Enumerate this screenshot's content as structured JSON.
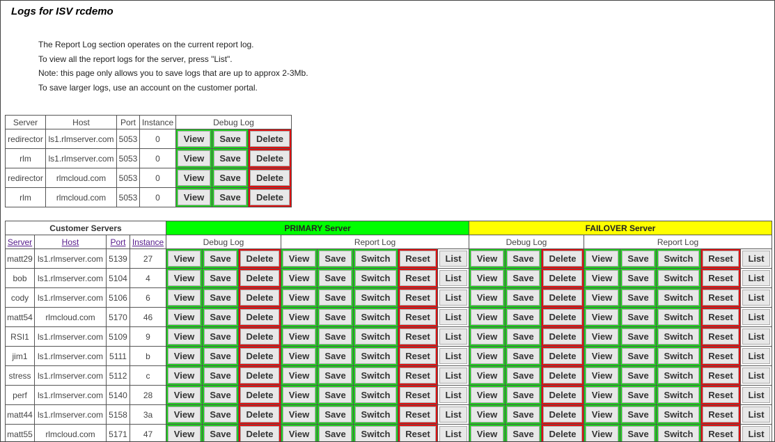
{
  "title": "Logs for ISV rcdemo",
  "notes": [
    "The Report Log section operates on the current report log.",
    "To view all the report logs for the server, press \"List\".",
    "Note: this page only allows you to save logs that are up to approx 2-3Mb.",
    "To save larger logs, use an account on the customer portal."
  ],
  "isv_table": {
    "headers": [
      "Server",
      "Host",
      "Port",
      "Instance",
      "Debug Log"
    ],
    "rows": [
      [
        "redirector",
        "ls1.rlmserver.com",
        "5053",
        "0"
      ],
      [
        "rlm",
        "ls1.rlmserver.com",
        "5053",
        "0"
      ],
      [
        "redirector",
        "rlmcloud.com",
        "5053",
        "0"
      ],
      [
        "rlm",
        "rlmcloud.com",
        "5053",
        "0"
      ]
    ]
  },
  "buttons": {
    "view": "View",
    "save": "Save",
    "delete": "Delete",
    "switch": "Switch",
    "reset": "Reset",
    "list": "List"
  },
  "customer_table": {
    "title": "Customer Servers",
    "primary": "PRIMARY Server",
    "failover": "FAILOVER Server",
    "debug_log": "Debug Log",
    "report_log": "Report Log",
    "headers": [
      "Server",
      "Host",
      "Port",
      "Instance"
    ],
    "rows": [
      [
        "matt29",
        "ls1.rlmserver.com",
        "5139",
        "27"
      ],
      [
        "bob",
        "ls1.rlmserver.com",
        "5104",
        "4"
      ],
      [
        "cody",
        "ls1.rlmserver.com",
        "5106",
        "6"
      ],
      [
        "matt54",
        "rlmcloud.com",
        "5170",
        "46"
      ],
      [
        "RSI1",
        "ls1.rlmserver.com",
        "5109",
        "9"
      ],
      [
        "jim1",
        "ls1.rlmserver.com",
        "5111",
        "b"
      ],
      [
        "stress",
        "ls1.rlmserver.com",
        "5112",
        "c"
      ],
      [
        "perf",
        "ls1.rlmserver.com",
        "5140",
        "28"
      ],
      [
        "matt44",
        "ls1.rlmserver.com",
        "5158",
        "3a"
      ],
      [
        "matt55",
        "rlmcloud.com",
        "5171",
        "47"
      ]
    ]
  },
  "colors": {
    "primary": "#00ff00",
    "failover": "#ffff00",
    "ok_border": "#22cc22",
    "danger_border": "#dd1111"
  }
}
